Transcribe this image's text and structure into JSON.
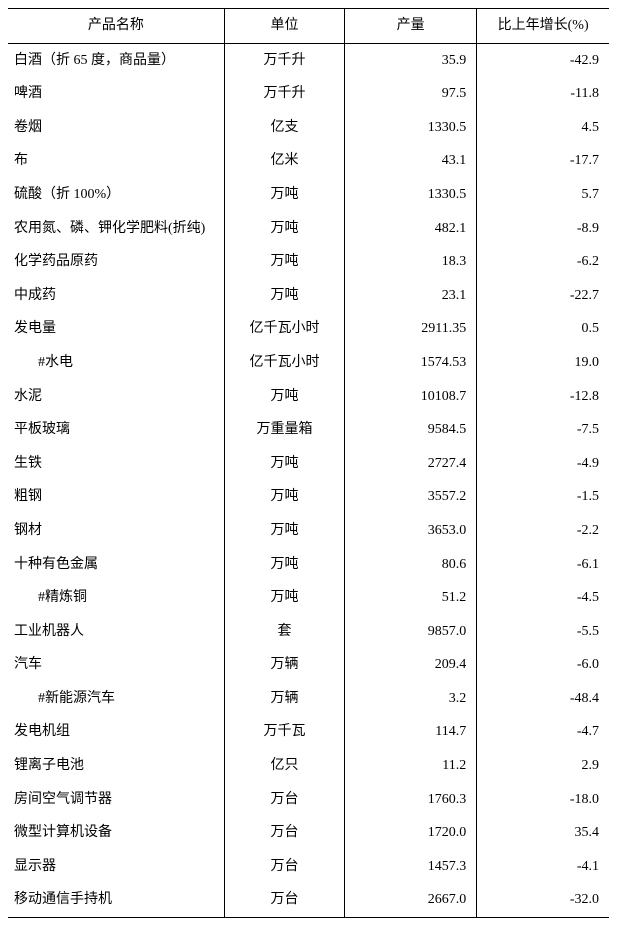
{
  "table": {
    "type": "table",
    "background_color": "#ffffff",
    "border_color": "#000000",
    "text_color": "#000000",
    "font_family": "SimSun",
    "font_size_pt": 11,
    "columns": [
      {
        "key": "name",
        "label": "产品名称",
        "align": "left",
        "width_pct": 36
      },
      {
        "key": "unit",
        "label": "单位",
        "align": "center",
        "width_pct": 20
      },
      {
        "key": "output",
        "label": "产量",
        "align": "right",
        "width_pct": 22
      },
      {
        "key": "growth",
        "label": "比上年增长(%)",
        "align": "right",
        "width_pct": 22
      }
    ],
    "rows": [
      {
        "name": "白酒（折 65 度，商品量）",
        "unit": "万千升",
        "output": "35.9",
        "growth": "-42.9",
        "indent": 0
      },
      {
        "name": "啤酒",
        "unit": "万千升",
        "output": "97.5",
        "growth": "-11.8",
        "indent": 0
      },
      {
        "name": "卷烟",
        "unit": "亿支",
        "output": "1330.5",
        "growth": "4.5",
        "indent": 0
      },
      {
        "name": "布",
        "unit": "亿米",
        "output": "43.1",
        "growth": "-17.7",
        "indent": 0
      },
      {
        "name": "硫酸（折 100%）",
        "unit": "万吨",
        "output": "1330.5",
        "growth": "5.7",
        "indent": 0
      },
      {
        "name": "农用氮、磷、钾化学肥料(折纯)",
        "unit": "万吨",
        "output": "482.1",
        "growth": "-8.9",
        "indent": 0
      },
      {
        "name": "化学药品原药",
        "unit": "万吨",
        "output": "18.3",
        "growth": "-6.2",
        "indent": 0
      },
      {
        "name": "中成药",
        "unit": "万吨",
        "output": "23.1",
        "growth": "-22.7",
        "indent": 0
      },
      {
        "name": "发电量",
        "unit": "亿千瓦小时",
        "output": "2911.35",
        "growth": "0.5",
        "indent": 0
      },
      {
        "name": "#水电",
        "unit": "亿千瓦小时",
        "output": "1574.53",
        "growth": "19.0",
        "indent": 1
      },
      {
        "name": "水泥",
        "unit": "万吨",
        "output": "10108.7",
        "growth": "-12.8",
        "indent": 0
      },
      {
        "name": "平板玻璃",
        "unit": "万重量箱",
        "output": "9584.5",
        "growth": "-7.5",
        "indent": 0
      },
      {
        "name": "生铁",
        "unit": "万吨",
        "output": "2727.4",
        "growth": "-4.9",
        "indent": 0
      },
      {
        "name": "粗钢",
        "unit": "万吨",
        "output": "3557.2",
        "growth": "-1.5",
        "indent": 0
      },
      {
        "name": "钢材",
        "unit": "万吨",
        "output": "3653.0",
        "growth": "-2.2",
        "indent": 0
      },
      {
        "name": "十种有色金属",
        "unit": "万吨",
        "output": "80.6",
        "growth": "-6.1",
        "indent": 0
      },
      {
        "name": "#精炼铜",
        "unit": "万吨",
        "output": "51.2",
        "growth": "-4.5",
        "indent": 1
      },
      {
        "name": "工业机器人",
        "unit": "套",
        "output": "9857.0",
        "growth": "-5.5",
        "indent": 0
      },
      {
        "name": "汽车",
        "unit": "万辆",
        "output": "209.4",
        "growth": "-6.0",
        "indent": 0
      },
      {
        "name": "#新能源汽车",
        "unit": "万辆",
        "output": "3.2",
        "growth": "-48.4",
        "indent": 1
      },
      {
        "name": "发电机组",
        "unit": "万千瓦",
        "output": "114.7",
        "growth": "-4.7",
        "indent": 0
      },
      {
        "name": "锂离子电池",
        "unit": "亿只",
        "output": "11.2",
        "growth": "2.9",
        "indent": 0
      },
      {
        "name": "房间空气调节器",
        "unit": "万台",
        "output": "1760.3",
        "growth": "-18.0",
        "indent": 0
      },
      {
        "name": "微型计算机设备",
        "unit": "万台",
        "output": "1720.0",
        "growth": "35.4",
        "indent": 0
      },
      {
        "name": "显示器",
        "unit": "万台",
        "output": "1457.3",
        "growth": "-4.1",
        "indent": 0
      },
      {
        "name": "移动通信手持机",
        "unit": "万台",
        "output": "2667.0",
        "growth": "-32.0",
        "indent": 0
      }
    ]
  }
}
